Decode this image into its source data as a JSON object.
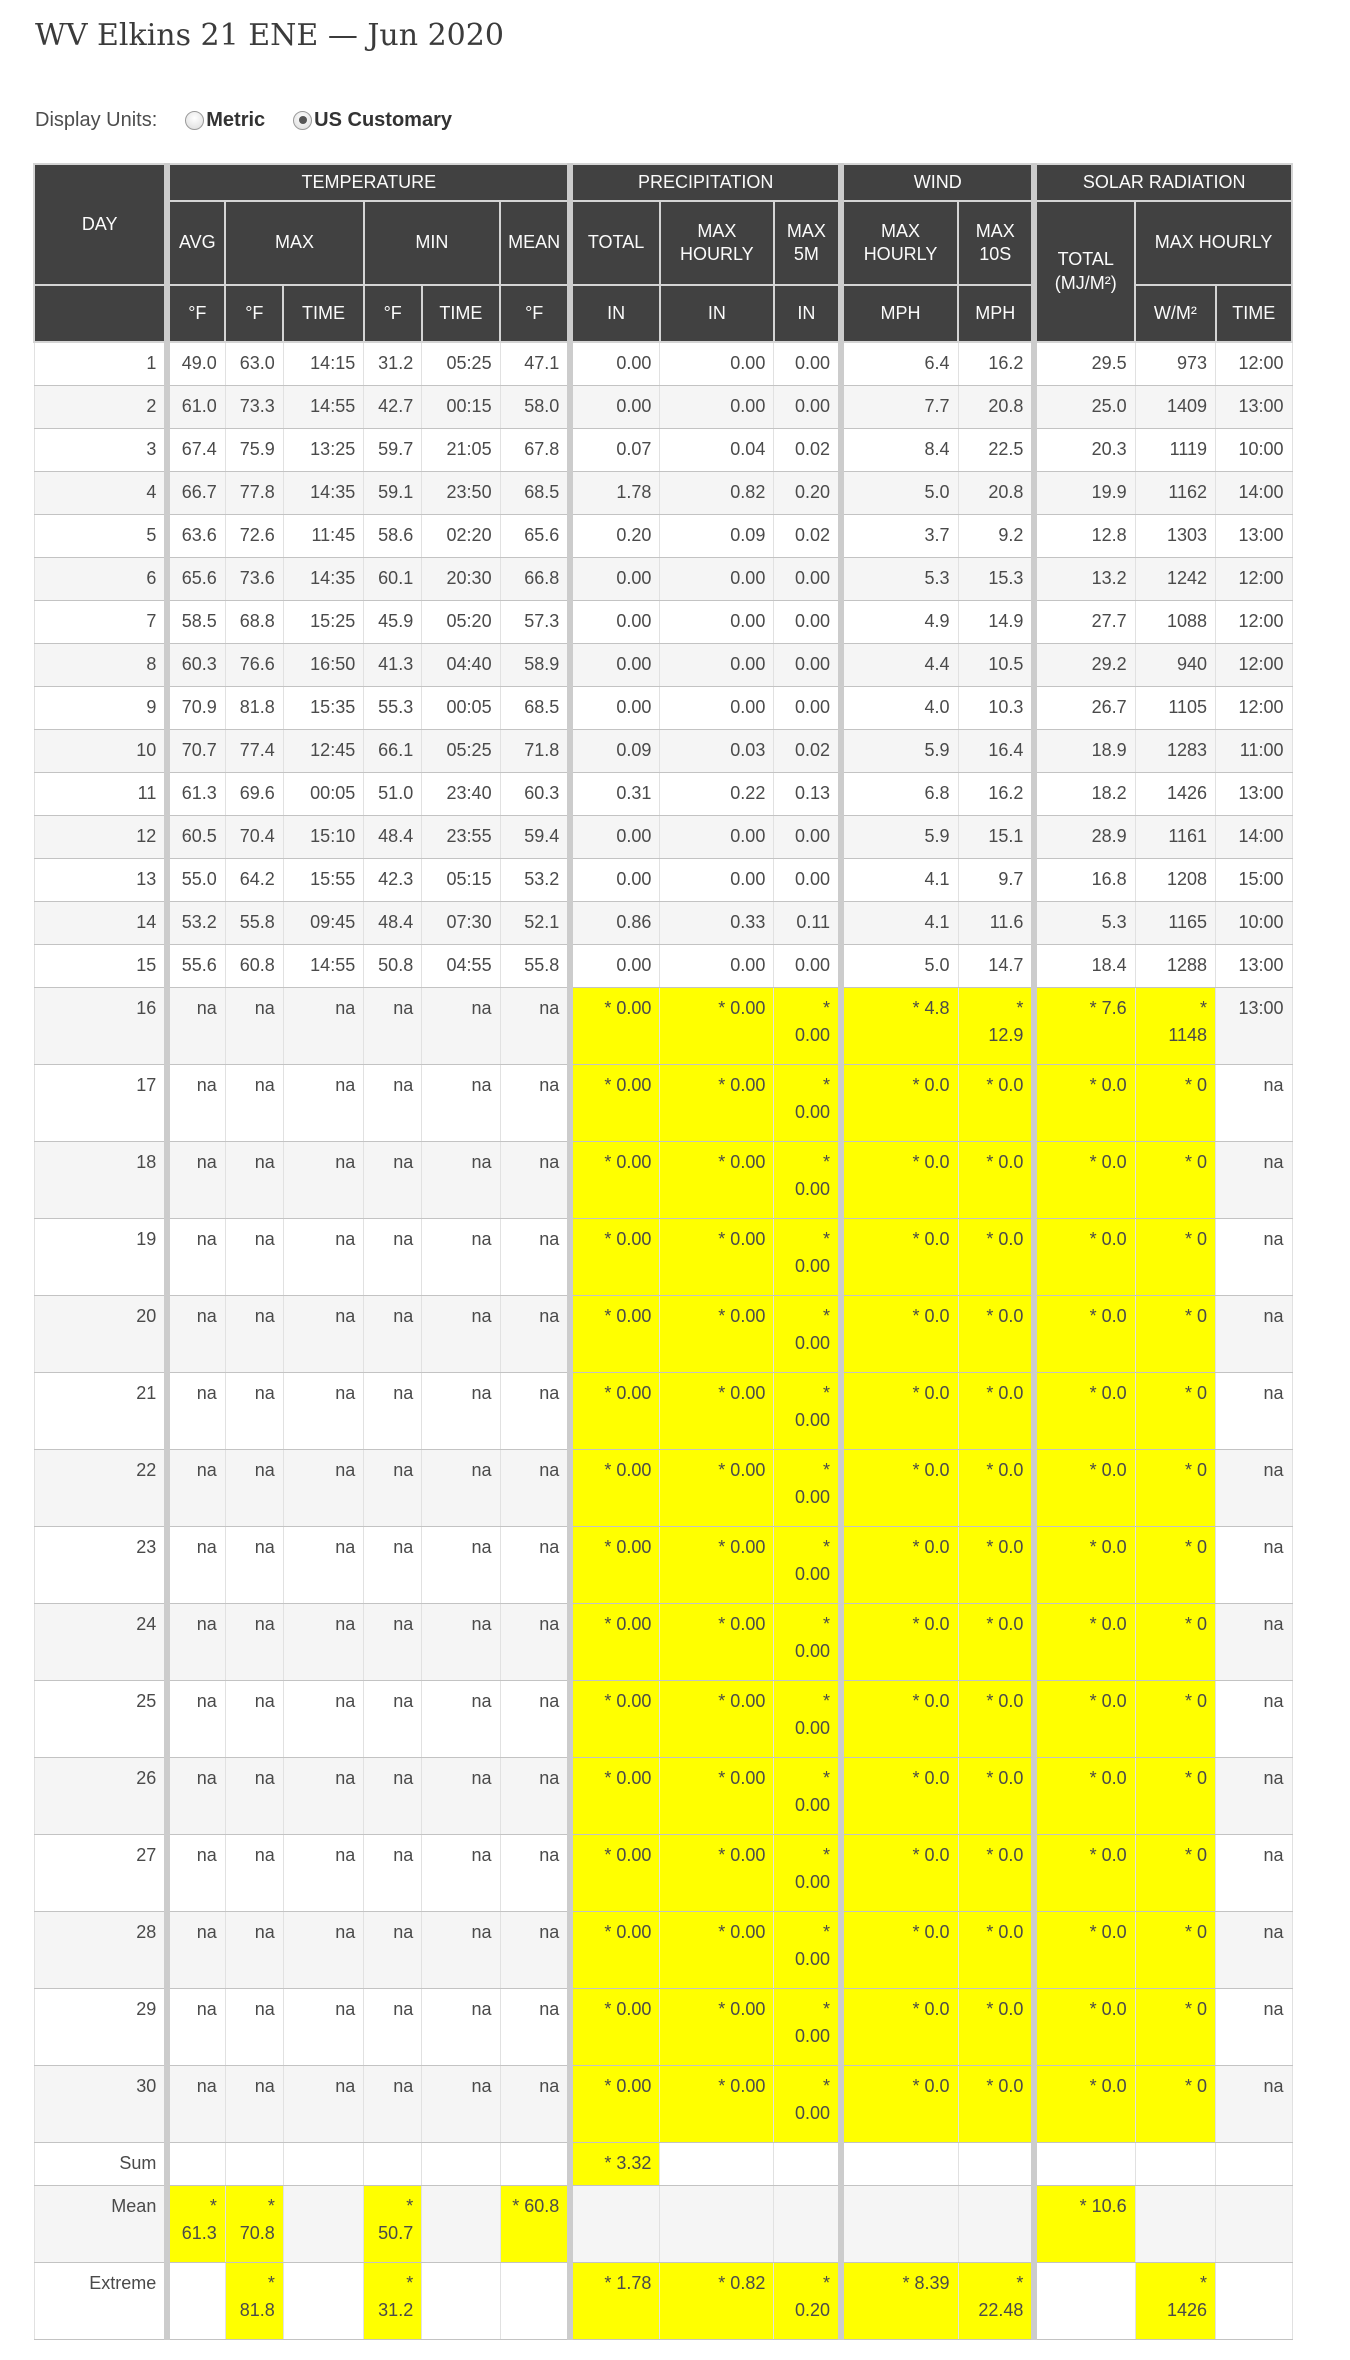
{
  "page_title": "WV Elkins 21 ENE — Jun 2020",
  "display_units": {
    "label": "Display Units:",
    "options": [
      {
        "label": "Metric",
        "selected": false
      },
      {
        "label": "US Customary",
        "selected": true
      }
    ]
  },
  "colors": {
    "header_bg": "#414141",
    "highlight": "#ffff00",
    "zebra": "#f5f5f5",
    "divider": "#cccccc"
  },
  "table": {
    "day_label": "DAY",
    "group_headers": [
      "TEMPERATURE",
      "PRECIPITATION",
      "WIND",
      "SOLAR RADIATION"
    ],
    "subheaders": {
      "avg": "AVG",
      "max": "MAX",
      "min": "MIN",
      "mean": "MEAN",
      "precip_total": "TOTAL",
      "precip_max_hourly": "MAX HOURLY",
      "precip_max_5m": "MAX 5M",
      "wind_max_hourly": "MAX HOURLY",
      "wind_max_10s": "MAX 10S",
      "solar_total": "TOTAL\n(MJ/M²)",
      "solar_max_hourly": "MAX HOURLY"
    },
    "units": [
      "°F",
      "°F",
      "TIME",
      "°F",
      "TIME",
      "°F",
      "IN",
      "IN",
      "IN",
      "MPH",
      "MPH",
      "W/M²",
      "TIME"
    ],
    "rows": [
      {
        "label": "1",
        "cells": [
          "49.0",
          "63.0",
          "14:15",
          "31.2",
          "05:25",
          "47.1",
          "0.00",
          "0.00",
          "0.00",
          "6.4",
          "16.2",
          "29.5",
          "973",
          "12:00"
        ],
        "hl": [],
        "tall": false
      },
      {
        "label": "2",
        "cells": [
          "61.0",
          "73.3",
          "14:55",
          "42.7",
          "00:15",
          "58.0",
          "0.00",
          "0.00",
          "0.00",
          "7.7",
          "20.8",
          "25.0",
          "1409",
          "13:00"
        ],
        "hl": [],
        "tall": false
      },
      {
        "label": "3",
        "cells": [
          "67.4",
          "75.9",
          "13:25",
          "59.7",
          "21:05",
          "67.8",
          "0.07",
          "0.04",
          "0.02",
          "8.4",
          "22.5",
          "20.3",
          "1119",
          "10:00"
        ],
        "hl": [],
        "tall": false
      },
      {
        "label": "4",
        "cells": [
          "66.7",
          "77.8",
          "14:35",
          "59.1",
          "23:50",
          "68.5",
          "1.78",
          "0.82",
          "0.20",
          "5.0",
          "20.8",
          "19.9",
          "1162",
          "14:00"
        ],
        "hl": [],
        "tall": false
      },
      {
        "label": "5",
        "cells": [
          "63.6",
          "72.6",
          "11:45",
          "58.6",
          "02:20",
          "65.6",
          "0.20",
          "0.09",
          "0.02",
          "3.7",
          "9.2",
          "12.8",
          "1303",
          "13:00"
        ],
        "hl": [],
        "tall": false
      },
      {
        "label": "6",
        "cells": [
          "65.6",
          "73.6",
          "14:35",
          "60.1",
          "20:30",
          "66.8",
          "0.00",
          "0.00",
          "0.00",
          "5.3",
          "15.3",
          "13.2",
          "1242",
          "12:00"
        ],
        "hl": [],
        "tall": false
      },
      {
        "label": "7",
        "cells": [
          "58.5",
          "68.8",
          "15:25",
          "45.9",
          "05:20",
          "57.3",
          "0.00",
          "0.00",
          "0.00",
          "4.9",
          "14.9",
          "27.7",
          "1088",
          "12:00"
        ],
        "hl": [],
        "tall": false
      },
      {
        "label": "8",
        "cells": [
          "60.3",
          "76.6",
          "16:50",
          "41.3",
          "04:40",
          "58.9",
          "0.00",
          "0.00",
          "0.00",
          "4.4",
          "10.5",
          "29.2",
          "940",
          "12:00"
        ],
        "hl": [],
        "tall": false
      },
      {
        "label": "9",
        "cells": [
          "70.9",
          "81.8",
          "15:35",
          "55.3",
          "00:05",
          "68.5",
          "0.00",
          "0.00",
          "0.00",
          "4.0",
          "10.3",
          "26.7",
          "1105",
          "12:00"
        ],
        "hl": [],
        "tall": false
      },
      {
        "label": "10",
        "cells": [
          "70.7",
          "77.4",
          "12:45",
          "66.1",
          "05:25",
          "71.8",
          "0.09",
          "0.03",
          "0.02",
          "5.9",
          "16.4",
          "18.9",
          "1283",
          "11:00"
        ],
        "hl": [],
        "tall": false
      },
      {
        "label": "11",
        "cells": [
          "61.3",
          "69.6",
          "00:05",
          "51.0",
          "23:40",
          "60.3",
          "0.31",
          "0.22",
          "0.13",
          "6.8",
          "16.2",
          "18.2",
          "1426",
          "13:00"
        ],
        "hl": [],
        "tall": false
      },
      {
        "label": "12",
        "cells": [
          "60.5",
          "70.4",
          "15:10",
          "48.4",
          "23:55",
          "59.4",
          "0.00",
          "0.00",
          "0.00",
          "5.9",
          "15.1",
          "28.9",
          "1161",
          "14:00"
        ],
        "hl": [],
        "tall": false
      },
      {
        "label": "13",
        "cells": [
          "55.0",
          "64.2",
          "15:55",
          "42.3",
          "05:15",
          "53.2",
          "0.00",
          "0.00",
          "0.00",
          "4.1",
          "9.7",
          "16.8",
          "1208",
          "15:00"
        ],
        "hl": [],
        "tall": false
      },
      {
        "label": "14",
        "cells": [
          "53.2",
          "55.8",
          "09:45",
          "48.4",
          "07:30",
          "52.1",
          "0.86",
          "0.33",
          "0.11",
          "4.1",
          "11.6",
          "5.3",
          "1165",
          "10:00"
        ],
        "hl": [],
        "tall": false
      },
      {
        "label": "15",
        "cells": [
          "55.6",
          "60.8",
          "14:55",
          "50.8",
          "04:55",
          "55.8",
          "0.00",
          "0.00",
          "0.00",
          "5.0",
          "14.7",
          "18.4",
          "1288",
          "13:00"
        ],
        "hl": [],
        "tall": false
      },
      {
        "label": "16",
        "cells": [
          "na",
          "na",
          "na",
          "na",
          "na",
          "na",
          "* 0.00",
          "* 0.00",
          "*\n0.00",
          "* 4.8",
          "*\n12.9",
          "* 7.6",
          "*\n1148",
          "13:00"
        ],
        "hl": [
          6,
          7,
          8,
          9,
          10,
          11,
          12
        ],
        "tall": true
      },
      {
        "label": "17",
        "cells": [
          "na",
          "na",
          "na",
          "na",
          "na",
          "na",
          "* 0.00",
          "* 0.00",
          "*\n0.00",
          "* 0.0",
          "* 0.0",
          "* 0.0",
          "* 0",
          "na"
        ],
        "hl": [
          6,
          7,
          8,
          9,
          10,
          11,
          12
        ],
        "tall": true
      },
      {
        "label": "18",
        "cells": [
          "na",
          "na",
          "na",
          "na",
          "na",
          "na",
          "* 0.00",
          "* 0.00",
          "*\n0.00",
          "* 0.0",
          "* 0.0",
          "* 0.0",
          "* 0",
          "na"
        ],
        "hl": [
          6,
          7,
          8,
          9,
          10,
          11,
          12
        ],
        "tall": true
      },
      {
        "label": "19",
        "cells": [
          "na",
          "na",
          "na",
          "na",
          "na",
          "na",
          "* 0.00",
          "* 0.00",
          "*\n0.00",
          "* 0.0",
          "* 0.0",
          "* 0.0",
          "* 0",
          "na"
        ],
        "hl": [
          6,
          7,
          8,
          9,
          10,
          11,
          12
        ],
        "tall": true
      },
      {
        "label": "20",
        "cells": [
          "na",
          "na",
          "na",
          "na",
          "na",
          "na",
          "* 0.00",
          "* 0.00",
          "*\n0.00",
          "* 0.0",
          "* 0.0",
          "* 0.0",
          "* 0",
          "na"
        ],
        "hl": [
          6,
          7,
          8,
          9,
          10,
          11,
          12
        ],
        "tall": true
      },
      {
        "label": "21",
        "cells": [
          "na",
          "na",
          "na",
          "na",
          "na",
          "na",
          "* 0.00",
          "* 0.00",
          "*\n0.00",
          "* 0.0",
          "* 0.0",
          "* 0.0",
          "* 0",
          "na"
        ],
        "hl": [
          6,
          7,
          8,
          9,
          10,
          11,
          12
        ],
        "tall": true
      },
      {
        "label": "22",
        "cells": [
          "na",
          "na",
          "na",
          "na",
          "na",
          "na",
          "* 0.00",
          "* 0.00",
          "*\n0.00",
          "* 0.0",
          "* 0.0",
          "* 0.0",
          "* 0",
          "na"
        ],
        "hl": [
          6,
          7,
          8,
          9,
          10,
          11,
          12
        ],
        "tall": true
      },
      {
        "label": "23",
        "cells": [
          "na",
          "na",
          "na",
          "na",
          "na",
          "na",
          "* 0.00",
          "* 0.00",
          "*\n0.00",
          "* 0.0",
          "* 0.0",
          "* 0.0",
          "* 0",
          "na"
        ],
        "hl": [
          6,
          7,
          8,
          9,
          10,
          11,
          12
        ],
        "tall": true
      },
      {
        "label": "24",
        "cells": [
          "na",
          "na",
          "na",
          "na",
          "na",
          "na",
          "* 0.00",
          "* 0.00",
          "*\n0.00",
          "* 0.0",
          "* 0.0",
          "* 0.0",
          "* 0",
          "na"
        ],
        "hl": [
          6,
          7,
          8,
          9,
          10,
          11,
          12
        ],
        "tall": true
      },
      {
        "label": "25",
        "cells": [
          "na",
          "na",
          "na",
          "na",
          "na",
          "na",
          "* 0.00",
          "* 0.00",
          "*\n0.00",
          "* 0.0",
          "* 0.0",
          "* 0.0",
          "* 0",
          "na"
        ],
        "hl": [
          6,
          7,
          8,
          9,
          10,
          11,
          12
        ],
        "tall": true
      },
      {
        "label": "26",
        "cells": [
          "na",
          "na",
          "na",
          "na",
          "na",
          "na",
          "* 0.00",
          "* 0.00",
          "*\n0.00",
          "* 0.0",
          "* 0.0",
          "* 0.0",
          "* 0",
          "na"
        ],
        "hl": [
          6,
          7,
          8,
          9,
          10,
          11,
          12
        ],
        "tall": true
      },
      {
        "label": "27",
        "cells": [
          "na",
          "na",
          "na",
          "na",
          "na",
          "na",
          "* 0.00",
          "* 0.00",
          "*\n0.00",
          "* 0.0",
          "* 0.0",
          "* 0.0",
          "* 0",
          "na"
        ],
        "hl": [
          6,
          7,
          8,
          9,
          10,
          11,
          12
        ],
        "tall": true
      },
      {
        "label": "28",
        "cells": [
          "na",
          "na",
          "na",
          "na",
          "na",
          "na",
          "* 0.00",
          "* 0.00",
          "*\n0.00",
          "* 0.0",
          "* 0.0",
          "* 0.0",
          "* 0",
          "na"
        ],
        "hl": [
          6,
          7,
          8,
          9,
          10,
          11,
          12
        ],
        "tall": true
      },
      {
        "label": "29",
        "cells": [
          "na",
          "na",
          "na",
          "na",
          "na",
          "na",
          "* 0.00",
          "* 0.00",
          "*\n0.00",
          "* 0.0",
          "* 0.0",
          "* 0.0",
          "* 0",
          "na"
        ],
        "hl": [
          6,
          7,
          8,
          9,
          10,
          11,
          12
        ],
        "tall": true
      },
      {
        "label": "30",
        "cells": [
          "na",
          "na",
          "na",
          "na",
          "na",
          "na",
          "* 0.00",
          "* 0.00",
          "*\n0.00",
          "* 0.0",
          "* 0.0",
          "* 0.0",
          "* 0",
          "na"
        ],
        "hl": [
          6,
          7,
          8,
          9,
          10,
          11,
          12
        ],
        "tall": true
      },
      {
        "label": "Sum",
        "cells": [
          "",
          "",
          "",
          "",
          "",
          "",
          "* 3.32",
          "",
          "",
          "",
          "",
          "",
          "",
          ""
        ],
        "hl": [
          6
        ],
        "tall": false
      },
      {
        "label": "Mean",
        "cells": [
          "*\n61.3",
          "*\n70.8",
          "",
          "*\n50.7",
          "",
          "* 60.8",
          "",
          "",
          "",
          "",
          "",
          "* 10.6",
          "",
          ""
        ],
        "hl": [
          0,
          1,
          3,
          5,
          11
        ],
        "tall": true
      },
      {
        "label": "Extreme",
        "cells": [
          "",
          "*\n81.8",
          "",
          "*\n31.2",
          "",
          "",
          "* 1.78",
          "* 0.82",
          "*\n0.20",
          "* 8.39",
          "*\n22.48",
          "",
          "*\n1426",
          ""
        ],
        "hl": [
          1,
          3,
          6,
          7,
          8,
          9,
          10,
          12
        ],
        "tall": true
      }
    ]
  }
}
